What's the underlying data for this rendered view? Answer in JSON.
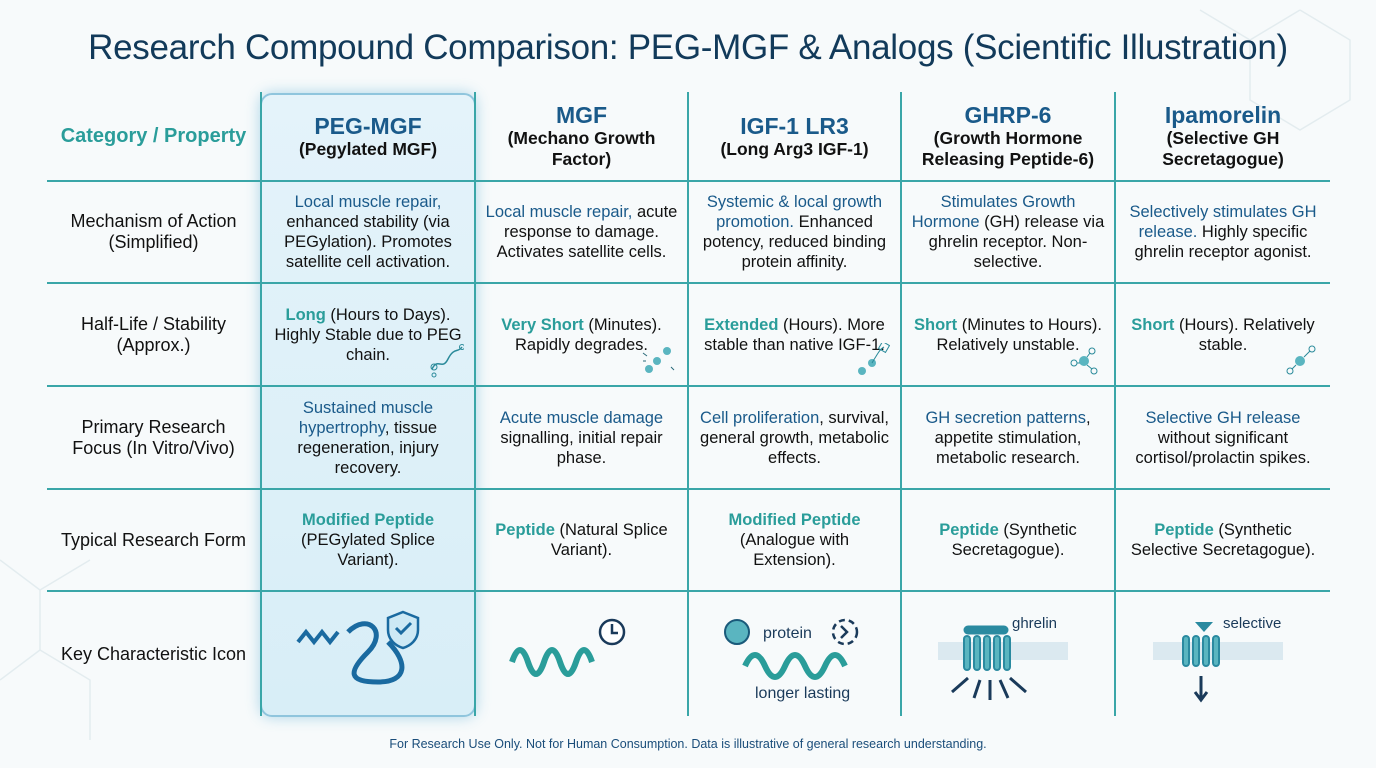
{
  "title": "Research Compound Comparison: PEG-MGF & Analogs (Scientific Illustration)",
  "category_header": "Category / Property",
  "columns": [
    {
      "name": "PEG-MGF",
      "sub": "(Pegylated MGF)"
    },
    {
      "name": "MGF",
      "sub": "(Mechano Growth Factor)"
    },
    {
      "name": "IGF-1 LR3",
      "sub": "(Long Arg3 IGF-1)"
    },
    {
      "name": "GHRP-6",
      "sub": "(Growth Hormone Releasing Peptide-6)"
    },
    {
      "name": "Ipamorelin",
      "sub": "(Selective GH Secretagogue)"
    }
  ],
  "rows": [
    {
      "label": "Mechanism of Action (Simplified)",
      "cells": [
        {
          "hl": "Local muscle repair,",
          "text": " enhanced stability (via PEGylation). Promotes satellite cell activation."
        },
        {
          "hl": "Local muscle repair,",
          "text": " acute response to damage. Activates satellite cells."
        },
        {
          "hl": "Systemic & local growth promotion.",
          "text": " Enhanced potency, reduced binding protein affinity."
        },
        {
          "hl": "Stimulates Growth Hormone",
          "text": " (GH) release via ghrelin receptor. Non-selective."
        },
        {
          "hl": "Selectively stimulates GH release.",
          "text": " Highly specific ghrelin receptor agonist."
        }
      ]
    },
    {
      "label": "Half-Life / Stability (Approx.)",
      "cells": [
        {
          "hl": "Long",
          "text": " (Hours to Days). Highly Stable due to PEG chain."
        },
        {
          "hl": "Very Short",
          "text": " (Minutes). Rapidly degrades."
        },
        {
          "hl": "Extended",
          "text": " (Hours). More stable than native IGF-1."
        },
        {
          "hl": "Short",
          "text": " (Minutes to Hours). Relatively unstable."
        },
        {
          "hl": "Short",
          "text": " (Hours). Relatively stable."
        }
      ]
    },
    {
      "label": "Primary Research Focus (In Vitro/Vivo)",
      "cells": [
        {
          "hl": "Sustained muscle hypertrophy",
          "text": ", tissue regeneration, injury recovery."
        },
        {
          "hl": "Acute muscle damage",
          "text": " signalling, initial repair phase."
        },
        {
          "hl": "Cell proliferation",
          "text": ", survival, general growth, metabolic effects."
        },
        {
          "hl": "GH secretion patterns",
          "text": ", appetite stimulation, metabolic research."
        },
        {
          "hl": "Selective GH release",
          "text": " without significant cortisol/prolactin spikes."
        }
      ]
    },
    {
      "label": "Typical Research Form",
      "cells": [
        {
          "hl": "Modified Peptide",
          "text": " (PEGylated Splice Variant)."
        },
        {
          "hl": "Peptide",
          "text": " (Natural Splice Variant)."
        },
        {
          "hl": "Modified Peptide",
          "text": " (Analogue with Extension)."
        },
        {
          "hl": "Peptide",
          "text": " (Synthetic Secretagogue)."
        },
        {
          "hl": "Peptide",
          "text": " (Synthetic Selective Secretagogue)."
        }
      ]
    }
  ],
  "icon_row": {
    "label": "Key Characteristic Icon",
    "protein": "protein",
    "longer_lasting": "longer lasting",
    "ghrelin": "ghrelin",
    "selective": "selective"
  },
  "footer": "For Research Use Only. Not for Human Consumption. Data is illustrative of general research understanding.",
  "colors": {
    "title": "#123a5a",
    "teal": "#2a9d9a",
    "blue": "#1a5a8a",
    "grid": "#3aa6a8"
  }
}
